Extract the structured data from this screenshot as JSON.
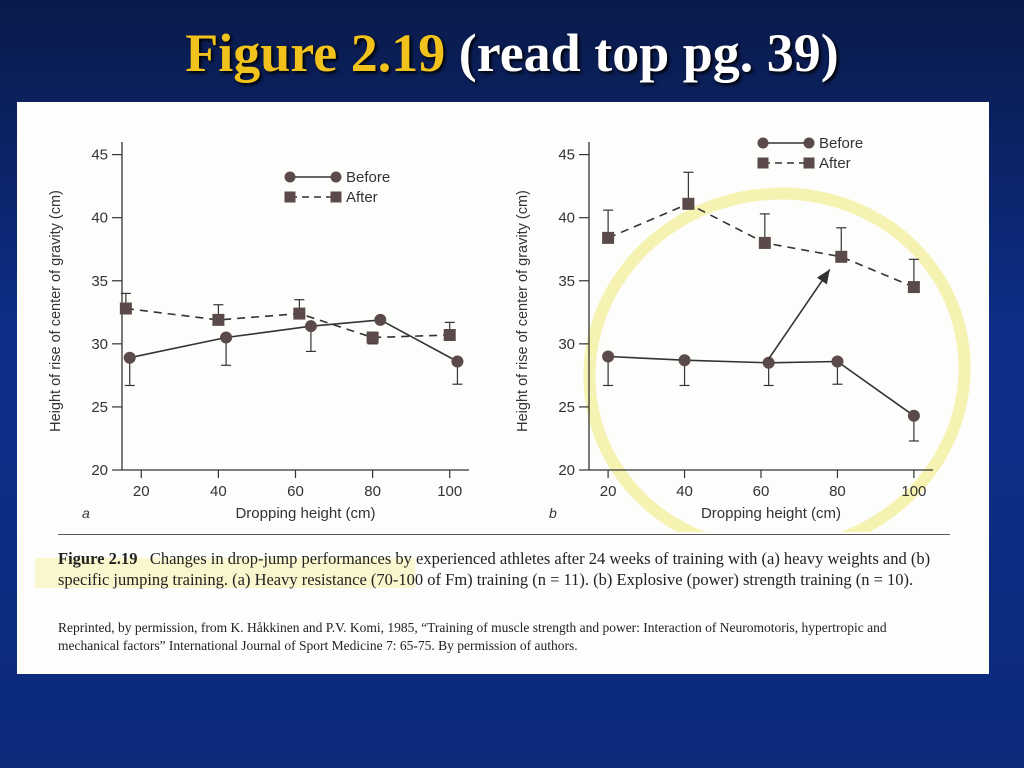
{
  "slide": {
    "title_highlight": "Figure 2.19",
    "title_rest": "(read top pg. 39)"
  },
  "caption": {
    "figure_label": "Figure 2.19",
    "text": "Changes in drop-jump performances by experienced athletes after 24 weeks of training with (a) heavy weights and (b) specific jumping training. (a) Heavy resistance (70-100 of Fm) training (n = 11). (b) Explosive (power) strength training (n = 10).",
    "credit": "Reprinted, by permission, from K. Håkkinen and P.V. Komi, 1985, “Training of muscle strength and power: Interaction of Neuromotoris, hypertropic and mechanical factors” International Journal of Sport Medicine 7: 65-75. By permission of authors."
  },
  "colors": {
    "marker": "#5a4a4a",
    "line": "#333333",
    "highlight_ring": "#f3ee9a"
  },
  "chart_data": [
    {
      "type": "line",
      "panel_label": "a",
      "xlabel": "Dropping height (cm)",
      "ylabel": "Height of rise of center of gravity (cm)",
      "x_ticks": [
        20,
        40,
        60,
        80,
        100
      ],
      "y_ticks": [
        20,
        25,
        30,
        35,
        40,
        45
      ],
      "xlim": [
        15,
        105
      ],
      "ylim": [
        20,
        46
      ],
      "legend_position": "top-right",
      "series": [
        {
          "name": "Before",
          "marker": "circle",
          "dash": "solid",
          "x": [
            17,
            42,
            64,
            82,
            102
          ],
          "y": [
            28.9,
            30.5,
            31.4,
            31.9,
            28.6
          ],
          "err_low": [
            2.2,
            2.2,
            2.0,
            0,
            1.8
          ],
          "err_high": [
            0,
            0,
            0,
            0,
            0
          ]
        },
        {
          "name": "After",
          "marker": "square",
          "dash": "dashed",
          "x": [
            16,
            40,
            61,
            80,
            100
          ],
          "y": [
            32.8,
            31.9,
            32.4,
            30.5,
            30.7
          ],
          "err_low": [
            0,
            0,
            0,
            0.5,
            0
          ],
          "err_high": [
            1.2,
            1.2,
            1.1,
            0,
            1.0
          ]
        }
      ]
    },
    {
      "type": "line",
      "panel_label": "b",
      "xlabel": "Dropping height (cm)",
      "ylabel": "Height of rise of center of gravity (cm)",
      "x_ticks": [
        20,
        40,
        60,
        80,
        100
      ],
      "y_ticks": [
        20,
        25,
        30,
        35,
        40,
        45
      ],
      "xlim": [
        15,
        105
      ],
      "ylim": [
        20,
        46
      ],
      "legend_position": "top-right",
      "series": [
        {
          "name": "Before",
          "marker": "circle",
          "dash": "solid",
          "x": [
            20,
            40,
            62,
            80,
            100
          ],
          "y": [
            29.0,
            28.7,
            28.5,
            28.6,
            24.3
          ],
          "err_low": [
            2.3,
            2.0,
            1.8,
            1.8,
            2.0
          ],
          "err_high": [
            0,
            0,
            0,
            0,
            0
          ]
        },
        {
          "name": "After",
          "marker": "square",
          "dash": "dashed",
          "x": [
            20,
            41,
            61,
            81,
            100
          ],
          "y": [
            38.4,
            41.1,
            38.0,
            36.9,
            34.5
          ],
          "err_low": [
            0,
            0,
            0,
            0,
            0
          ],
          "err_high": [
            2.2,
            2.5,
            2.3,
            2.3,
            2.2
          ]
        }
      ],
      "annotation_arrow": {
        "from": [
          62,
          28.8
        ],
        "to": [
          78,
          35.9
        ]
      }
    }
  ]
}
